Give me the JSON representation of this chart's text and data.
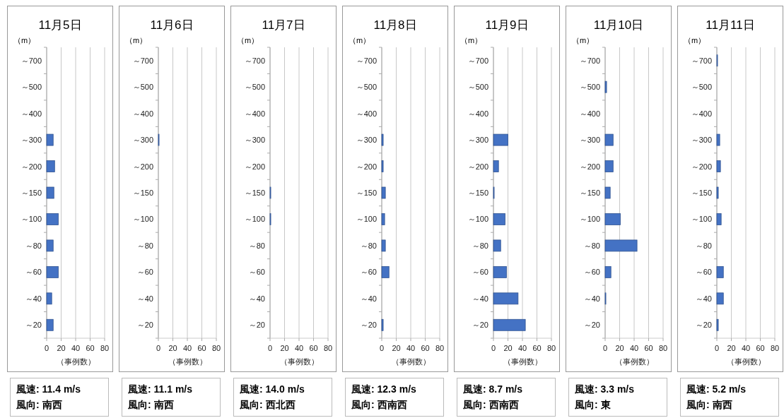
{
  "chart_data": [
    {
      "type": "bar",
      "orientation": "horizontal",
      "title": "11月5日",
      "ylabel": "（m）",
      "xlabel": "（事例数）",
      "categories": [
        "～700",
        "～500",
        "～400",
        "～300",
        "～200",
        "～150",
        "～100",
        "～80",
        "～60",
        "～40",
        "～20"
      ],
      "values": [
        0,
        0,
        0,
        9,
        11,
        10,
        16,
        9,
        16,
        7,
        9
      ],
      "color": "#4472c4",
      "xlim": [
        0,
        80
      ],
      "xticks": [
        0,
        20,
        40,
        60,
        80
      ],
      "grid": "x",
      "annotations": [
        "風速: 11.4 m/s",
        "風向: 南西"
      ]
    },
    {
      "type": "bar",
      "orientation": "horizontal",
      "title": "11月6日",
      "ylabel": "（m）",
      "xlabel": "（事例数）",
      "categories": [
        "～700",
        "～500",
        "～400",
        "～300",
        "～200",
        "～150",
        "～100",
        "～80",
        "～60",
        "～40",
        "～20"
      ],
      "values": [
        0,
        0,
        0,
        1,
        0,
        0,
        0,
        0,
        0,
        0,
        0
      ],
      "color": "#4472c4",
      "xlim": [
        0,
        80
      ],
      "xticks": [
        0,
        20,
        40,
        60,
        80
      ],
      "grid": "x",
      "annotations": [
        "風速: 11.1 m/s",
        "風向: 南西"
      ]
    },
    {
      "type": "bar",
      "orientation": "horizontal",
      "title": "11月7日",
      "ylabel": "（m）",
      "xlabel": "（事例数）",
      "categories": [
        "～700",
        "～500",
        "～400",
        "～300",
        "～200",
        "～150",
        "～100",
        "～80",
        "～60",
        "～40",
        "～20"
      ],
      "values": [
        0,
        0,
        0,
        0,
        0,
        1,
        1,
        0,
        0,
        0,
        0
      ],
      "color": "#4472c4",
      "xlim": [
        0,
        80
      ],
      "xticks": [
        0,
        20,
        40,
        60,
        80
      ],
      "grid": "x",
      "annotations": [
        "風速: 14.0 m/s",
        "風向: 西北西"
      ]
    },
    {
      "type": "bar",
      "orientation": "horizontal",
      "title": "11月8日",
      "ylabel": "（m）",
      "xlabel": "（事例数）",
      "categories": [
        "～700",
        "～500",
        "～400",
        "～300",
        "～200",
        "～150",
        "～100",
        "～80",
        "～60",
        "～40",
        "～20"
      ],
      "values": [
        0,
        0,
        0,
        2,
        2,
        5,
        4,
        5,
        10,
        0,
        2
      ],
      "color": "#4472c4",
      "xlim": [
        0,
        80
      ],
      "xticks": [
        0,
        20,
        40,
        60,
        80
      ],
      "grid": "x",
      "annotations": [
        "風速: 12.3 m/s",
        "風向: 西南西"
      ]
    },
    {
      "type": "bar",
      "orientation": "horizontal",
      "title": "11月9日",
      "ylabel": "（m）",
      "xlabel": "（事例数）",
      "categories": [
        "～700",
        "～500",
        "～400",
        "～300",
        "～200",
        "～150",
        "～100",
        "～80",
        "～60",
        "～40",
        "～20"
      ],
      "values": [
        0,
        0,
        0,
        20,
        7,
        1,
        16,
        10,
        18,
        34,
        44
      ],
      "color": "#4472c4",
      "xlim": [
        0,
        80
      ],
      "xticks": [
        0,
        20,
        40,
        60,
        80
      ],
      "grid": "x",
      "annotations": [
        "風速: 8.7 m/s",
        "風向: 西南西"
      ]
    },
    {
      "type": "bar",
      "orientation": "horizontal",
      "title": "11月10日",
      "ylabel": "（m）",
      "xlabel": "（事例数）",
      "categories": [
        "～700",
        "～500",
        "～400",
        "～300",
        "～200",
        "～150",
        "～100",
        "～80",
        "～60",
        "～40",
        "～20"
      ],
      "values": [
        0,
        2,
        0,
        11,
        11,
        7,
        21,
        44,
        8,
        1,
        0
      ],
      "color": "#4472c4",
      "xlim": [
        0,
        80
      ],
      "xticks": [
        0,
        20,
        40,
        60,
        80
      ],
      "grid": "x",
      "annotations": [
        "風速: 3.3 m/s",
        "風向: 東"
      ]
    },
    {
      "type": "bar",
      "orientation": "horizontal",
      "title": "11月11日",
      "ylabel": "（m）",
      "xlabel": "（事例数）",
      "categories": [
        "～700",
        "～500",
        "～400",
        "～300",
        "～200",
        "～150",
        "～100",
        "～80",
        "～60",
        "～40",
        "～20"
      ],
      "values": [
        1,
        0,
        0,
        4,
        5,
        2,
        6,
        0,
        9,
        9,
        2
      ],
      "color": "#4472c4",
      "xlim": [
        0,
        80
      ],
      "xticks": [
        0,
        20,
        40,
        60,
        80
      ],
      "grid": "x",
      "annotations": [
        "風速: 5.2 m/s",
        "風向: 南西"
      ]
    }
  ]
}
